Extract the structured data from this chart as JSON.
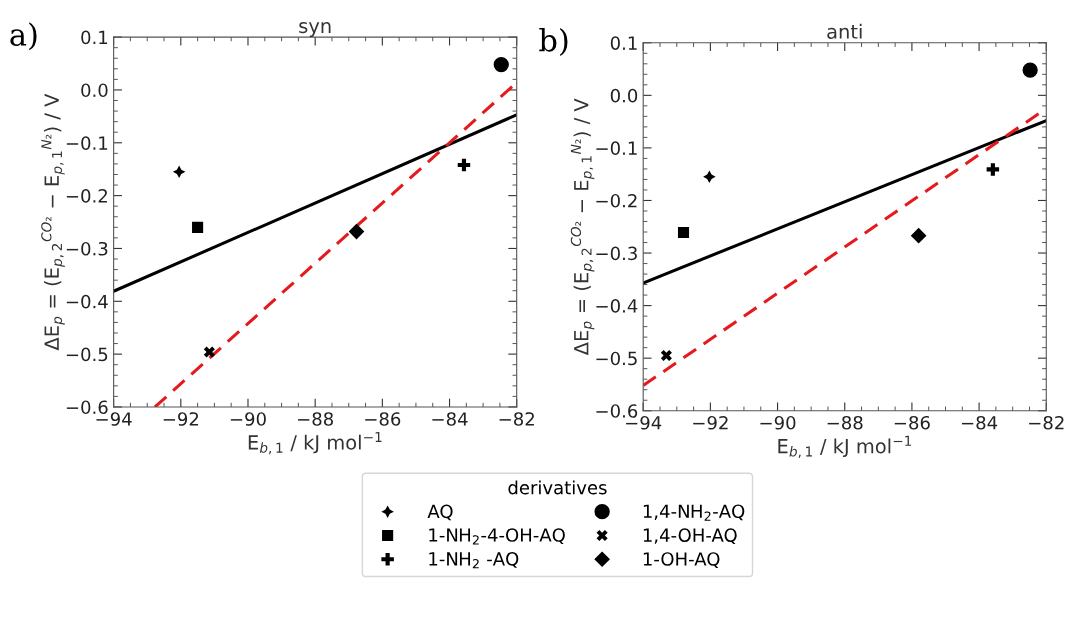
{
  "chart_data": [
    {
      "type": "scatter",
      "title": "syn",
      "xlabel": "E$_{b,1}$ / kJ mol$^{−1}$",
      "ylabel": "ΔE$_{p}$ = (E$_{p,2}$$^{CO₂}$ − E$_{p,1}$$^{N₂}$) / V",
      "annotations": [
        "a)"
      ],
      "xlim": [
        -94,
        -82
      ],
      "ylim": [
        -0.6,
        0.1
      ],
      "xticks": [
        {
          "value": -94,
          "label": "−94"
        },
        {
          "value": -92,
          "label": "−92"
        },
        {
          "value": -90,
          "label": "−90"
        },
        {
          "value": -88,
          "label": "−88"
        },
        {
          "value": -86,
          "label": "−86"
        },
        {
          "value": -84,
          "label": "−84"
        },
        {
          "value": -82,
          "label": "−82"
        }
      ],
      "yticks": [
        {
          "value": -0.6,
          "label": "−0.6"
        },
        {
          "value": -0.5,
          "label": "−0.5"
        },
        {
          "value": -0.4,
          "label": "−0.4"
        },
        {
          "value": -0.3,
          "label": "−0.3"
        },
        {
          "value": -0.2,
          "label": "−0.2"
        },
        {
          "value": -0.1,
          "label": "−0.1"
        },
        {
          "value": 0.0,
          "label": "0.0"
        },
        {
          "value": 0.1,
          "label": "0.1"
        }
      ],
      "grid": false,
      "legend": "bottom",
      "legend_title": "derivatives",
      "series": [
        {
          "name": "AQ",
          "marker": "star",
          "color": "#000000",
          "x": [
            -92.05
          ],
          "values": [
            -0.155
          ]
        },
        {
          "name": "1-NH$_{2}$-4-OH-AQ",
          "marker": "square",
          "color": "#000000",
          "x": [
            -91.5
          ],
          "values": [
            -0.26
          ]
        },
        {
          "name": "1-NH$_{2}$ -AQ",
          "marker": "plus",
          "color": "#000000",
          "x": [
            -83.57
          ],
          "values": [
            -0.142
          ]
        },
        {
          "name": "1,4-NH$_{2}$-AQ",
          "marker": "circle",
          "color": "#000000",
          "x": [
            -82.46
          ],
          "values": [
            0.048
          ]
        },
        {
          "name": "1,4-OH-AQ",
          "marker": "cross",
          "color": "#000000",
          "x": [
            -91.15
          ],
          "values": [
            -0.496
          ]
        },
        {
          "name": "1-OH-AQ",
          "marker": "diamond",
          "color": "#000000",
          "x": [
            -86.77
          ],
          "values": [
            -0.268
          ]
        },
        {
          "type": "line",
          "line_style": "solid",
          "color": "#000000",
          "x": [
            -94,
            -82
          ],
          "values": [
            -0.381,
            -0.047
          ]
        },
        {
          "type": "line",
          "line_style": "dashed",
          "color": "#e41a1c",
          "x": [
            -92.77,
            -82
          ],
          "values": [
            -0.6,
            0.014
          ]
        }
      ]
    },
    {
      "type": "scatter",
      "title": "anti",
      "xlabel": "E$_{b,1}$ / kJ mol$^{−1}$",
      "ylabel": "ΔE$_{p}$ = (E$_{p,2}$$^{CO₂}$ − E$_{p,1}$$^{N₂}$) / V",
      "annotations": [
        "b)"
      ],
      "xlim": [
        -94,
        -82
      ],
      "ylim": [
        -0.6,
        0.1
      ],
      "xticks": [
        {
          "value": -94,
          "label": "−94"
        },
        {
          "value": -92,
          "label": "−92"
        },
        {
          "value": -90,
          "label": "−90"
        },
        {
          "value": -88,
          "label": "−88"
        },
        {
          "value": -86,
          "label": "−86"
        },
        {
          "value": -84,
          "label": "−84"
        },
        {
          "value": -82,
          "label": "−82"
        }
      ],
      "yticks": [
        {
          "value": -0.6,
          "label": "−0.6"
        },
        {
          "value": -0.5,
          "label": "−0.5"
        },
        {
          "value": -0.4,
          "label": "−0.4"
        },
        {
          "value": -0.3,
          "label": "−0.3"
        },
        {
          "value": -0.2,
          "label": "−0.2"
        },
        {
          "value": -0.1,
          "label": "−0.1"
        },
        {
          "value": 0.0,
          "label": "0.0"
        },
        {
          "value": 0.1,
          "label": "0.1"
        }
      ],
      "grid": false,
      "series": [
        {
          "marker": "star",
          "color": "#000000",
          "x": [
            -92.03
          ],
          "values": [
            -0.155
          ]
        },
        {
          "marker": "square",
          "color": "#000000",
          "x": [
            -92.8
          ],
          "values": [
            -0.261
          ]
        },
        {
          "marker": "plus",
          "color": "#000000",
          "x": [
            -83.59
          ],
          "values": [
            -0.141
          ]
        },
        {
          "marker": "circle",
          "color": "#000000",
          "x": [
            -82.48
          ],
          "values": [
            0.048
          ]
        },
        {
          "marker": "cross",
          "color": "#000000",
          "x": [
            -93.31
          ],
          "values": [
            -0.495
          ]
        },
        {
          "marker": "diamond",
          "color": "#000000",
          "x": [
            -85.8
          ],
          "values": [
            -0.267
          ]
        },
        {
          "type": "line",
          "line_style": "solid",
          "color": "#000000",
          "x": [
            -94,
            -82
          ],
          "values": [
            -0.357,
            -0.048
          ]
        },
        {
          "type": "line",
          "line_style": "dashed",
          "color": "#e41a1c",
          "x": [
            -94,
            -82
          ],
          "values": [
            -0.552,
            -0.025
          ]
        }
      ]
    }
  ]
}
